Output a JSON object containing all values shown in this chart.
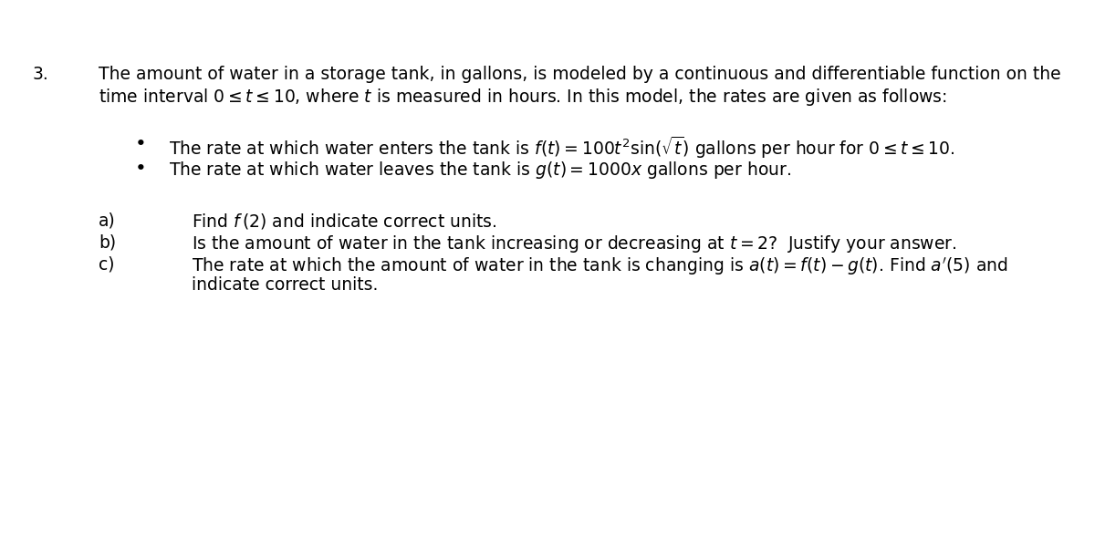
{
  "background_color": "#ffffff",
  "fig_width": 12.0,
  "fig_height": 6.02,
  "dpi": 100,
  "problem_number": "3.",
  "intro_line1": "The amount of water in a storage tank, in gallons, is modeled by a continuous and differentiable function on the",
  "intro_line2_math": "time interval $0 \\leq t \\leq 10$, where $t$ is measured in hours. In this model, the rates are given as follows:",
  "bullet1": "The rate at which water enters the tank is $f(t) = 100t^2 \\sin\\!(\\sqrt{t})$ gallons per hour for $0 \\leq t \\leq 10$.",
  "bullet2": "The rate at which water leaves the tank is $g(t) = 1000x$ gallons per hour.",
  "part_a_label": "a)",
  "part_a_text": "Find $f\\,(2)$ and indicate correct units.",
  "part_b_label": "b)",
  "part_b_text": "Is the amount of water in the tank increasing or decreasing at $t = 2?$  Justify your answer.",
  "part_c_label": "c)",
  "part_c_text1": "The rate at which the amount of water in the tank is changing is $a(t) = f(t) - g(t)$. Find $a'(5)$ and",
  "part_c_text2": "indicate correct units.",
  "font_size": 13.5,
  "text_color": "#000000"
}
